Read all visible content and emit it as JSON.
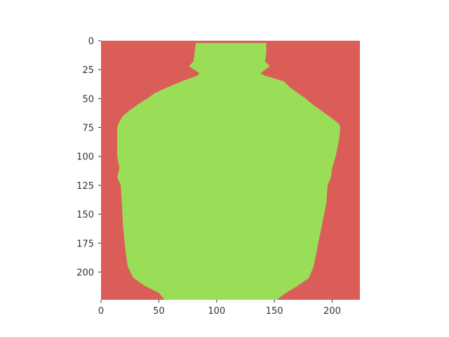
{
  "chart_data": {
    "type": "heatmap",
    "title": "",
    "xlabel": "",
    "ylabel": "",
    "xlim": [
      0,
      224
    ],
    "ylim": [
      224,
      0
    ],
    "grid": false,
    "x_ticks": [
      0,
      50,
      100,
      150,
      200
    ],
    "y_ticks": [
      0,
      25,
      50,
      75,
      100,
      125,
      150,
      175,
      200
    ],
    "description_classes": [
      "background",
      "object"
    ],
    "colors": {
      "background": "#da5e57",
      "object": "#9ade58"
    },
    "mask_rows": [
      {
        "y": 2,
        "x_start": 82,
        "x_end": 143
      },
      {
        "y": 10,
        "x_start": 81,
        "x_end": 143
      },
      {
        "y": 18,
        "x_start": 80,
        "x_end": 142
      },
      {
        "y": 22,
        "x_start": 76,
        "x_end": 146
      },
      {
        "y": 28,
        "x_start": 85,
        "x_end": 138
      },
      {
        "y": 30,
        "x_start": 84,
        "x_end": 141
      },
      {
        "y": 35,
        "x_start": 70,
        "x_end": 158
      },
      {
        "y": 40,
        "x_start": 58,
        "x_end": 163
      },
      {
        "y": 45,
        "x_start": 47,
        "x_end": 170
      },
      {
        "y": 50,
        "x_start": 40,
        "x_end": 177
      },
      {
        "y": 55,
        "x_start": 32,
        "x_end": 183
      },
      {
        "y": 60,
        "x_start": 25,
        "x_end": 190
      },
      {
        "y": 65,
        "x_start": 19,
        "x_end": 197
      },
      {
        "y": 68,
        "x_start": 17,
        "x_end": 201
      },
      {
        "y": 72,
        "x_start": 15,
        "x_end": 206
      },
      {
        "y": 75,
        "x_start": 14,
        "x_end": 207
      },
      {
        "y": 85,
        "x_start": 14,
        "x_end": 206
      },
      {
        "y": 100,
        "x_start": 14,
        "x_end": 203
      },
      {
        "y": 110,
        "x_start": 16,
        "x_end": 200
      },
      {
        "y": 118,
        "x_start": 14,
        "x_end": 199
      },
      {
        "y": 125,
        "x_start": 17,
        "x_end": 196
      },
      {
        "y": 140,
        "x_start": 18,
        "x_end": 195
      },
      {
        "y": 160,
        "x_start": 19,
        "x_end": 191
      },
      {
        "y": 180,
        "x_start": 21,
        "x_end": 187
      },
      {
        "y": 195,
        "x_start": 23,
        "x_end": 184
      },
      {
        "y": 205,
        "x_start": 28,
        "x_end": 180
      },
      {
        "y": 212,
        "x_start": 38,
        "x_end": 170
      },
      {
        "y": 218,
        "x_start": 50,
        "x_end": 160
      },
      {
        "y": 224,
        "x_start": 55,
        "x_end": 152
      }
    ]
  }
}
